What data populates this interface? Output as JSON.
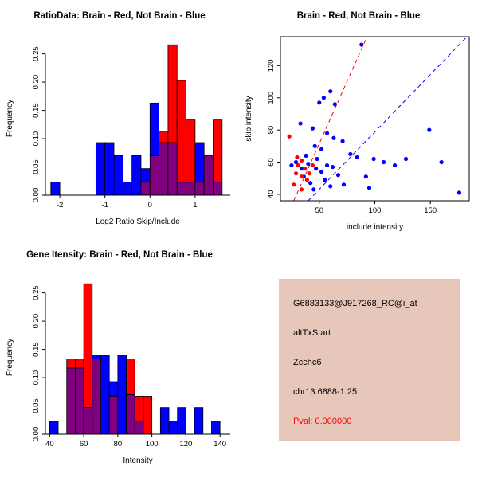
{
  "colors": {
    "red": "#FF0000",
    "blue": "#0000FF",
    "overlap": "#800080",
    "axis": "#000000",
    "background": "#FFFFFF"
  },
  "chart_data": [
    {
      "id": "ratio_histogram",
      "type": "bar",
      "variant": "overlaid_histogram",
      "title": "RatioData: Brain - Red, Not Brain - Blue",
      "xlabel": "Log2 Ratio Skip/Include",
      "ylabel": "Frequency",
      "xlim": [
        -2.32,
        1.78
      ],
      "ylim": [
        0,
        0.272
      ],
      "xticks": [
        -2,
        -1,
        0,
        1
      ],
      "yticks": [
        0,
        0.05,
        0.1,
        0.15,
        0.2,
        0.25
      ],
      "ytick_decimals": 2,
      "grid": false,
      "bins": {
        "start": -2.2,
        "width": 0.2
      },
      "overlap_color": "#800080",
      "series": [
        {
          "name": "Brain",
          "role": "red",
          "color": "#FF0000",
          "values": [
            0,
            0,
            0,
            0,
            0,
            0,
            0,
            0,
            0,
            0,
            0.023,
            0.07,
            0.113,
            0.266,
            0.203,
            0.133,
            0.023,
            0.07,
            0.133,
            0
          ]
        },
        {
          "name": "Not Brain",
          "role": "blue",
          "color": "#0000FF",
          "values": [
            0.023,
            0,
            0,
            0,
            0,
            0.093,
            0.093,
            0.07,
            0.023,
            0.07,
            0.047,
            0.163,
            0.093,
            0.093,
            0.023,
            0.023,
            0.093,
            0.07,
            0.023,
            0
          ]
        }
      ]
    },
    {
      "id": "intensity_scatter",
      "type": "scatter",
      "title": "Brain - Red, Not Brain - Blue",
      "xlabel": "include intensity",
      "ylabel": "skip intensity",
      "xlim": [
        15,
        185
      ],
      "ylim": [
        36,
        138
      ],
      "xticks": [
        50,
        100,
        150
      ],
      "yticks": [
        40,
        60,
        80,
        100,
        120
      ],
      "grid": false,
      "box": true,
      "series": [
        {
          "name": "Not Brain",
          "role": "blue",
          "color": "#0000FF",
          "points": [
            [
              88,
              133
            ],
            [
              60,
              104
            ],
            [
              54,
              100
            ],
            [
              50,
              97
            ],
            [
              64,
              96
            ],
            [
              33,
              84
            ],
            [
              44,
              81
            ],
            [
              57,
              78
            ],
            [
              63,
              75
            ],
            [
              71,
              73
            ],
            [
              46,
              70
            ],
            [
              52,
              68
            ],
            [
              78,
              65
            ],
            [
              84,
              63
            ],
            [
              99,
              62
            ],
            [
              108,
              60
            ],
            [
              57,
              58
            ],
            [
              62,
              57
            ],
            [
              47,
              56
            ],
            [
              52,
              54
            ],
            [
              67,
              52
            ],
            [
              92,
              51
            ],
            [
              118,
              58
            ],
            [
              128,
              62
            ],
            [
              149,
              80
            ],
            [
              160,
              60
            ],
            [
              176,
              41
            ],
            [
              95,
              44
            ],
            [
              72,
              46
            ],
            [
              42,
              47
            ],
            [
              36,
              51
            ],
            [
              29,
              60
            ],
            [
              25,
              58
            ],
            [
              48,
              62
            ],
            [
              40,
              59
            ],
            [
              34,
              56
            ],
            [
              55,
              49
            ],
            [
              60,
              45
            ],
            [
              45,
              43
            ],
            [
              38,
              64
            ]
          ]
        },
        {
          "name": "Brain",
          "role": "red",
          "color": "#FF0000",
          "points": [
            [
              23,
              76
            ],
            [
              30,
              63
            ],
            [
              34,
              61
            ],
            [
              31,
              58
            ],
            [
              37,
              56
            ],
            [
              29,
              53
            ],
            [
              34,
              51
            ],
            [
              39,
              49
            ],
            [
              27,
              46
            ],
            [
              34,
              43
            ],
            [
              44,
              58
            ],
            [
              41,
              53
            ]
          ]
        }
      ],
      "lines": [
        {
          "name": "brain-fit-line",
          "color": "#FF0000",
          "dashed": true,
          "from": [
            27,
            36
          ],
          "to": [
            93,
            138
          ]
        },
        {
          "name": "notbrain-fit-line",
          "color": "#0000FF",
          "dashed": true,
          "from": [
            40,
            36
          ],
          "to": [
            183,
            138
          ]
        }
      ]
    },
    {
      "id": "gene_intensity_histogram",
      "type": "bar",
      "variant": "overlaid_histogram",
      "title": "Gene Itensity: Brain - Red, Not Brain - Blue",
      "xlabel": "Intensity",
      "ylabel": "Frequency",
      "xlim": [
        37.5,
        146
      ],
      "ylim": [
        0,
        0.272
      ],
      "xticks": [
        40,
        60,
        80,
        100,
        120,
        140
      ],
      "yticks": [
        0,
        0.05,
        0.1,
        0.15,
        0.2,
        0.25
      ],
      "ytick_decimals": 2,
      "grid": false,
      "bins": {
        "start": 40,
        "width": 5
      },
      "overlap_color": "#800080",
      "series": [
        {
          "name": "Brain",
          "role": "red",
          "color": "#FF0000",
          "values": [
            0,
            0,
            0.133,
            0.133,
            0.266,
            0.133,
            0,
            0.067,
            0,
            0.133,
            0.067,
            0.067,
            0,
            0,
            0,
            0,
            0,
            0,
            0,
            0,
            0
          ]
        },
        {
          "name": "Not Brain",
          "role": "blue",
          "color": "#0000FF",
          "values": [
            0.023,
            0,
            0.117,
            0.117,
            0.047,
            0.14,
            0.14,
            0.093,
            0.14,
            0.07,
            0.023,
            0,
            0,
            0.047,
            0.023,
            0.047,
            0,
            0.047,
            0,
            0.023,
            0
          ]
        }
      ]
    }
  ],
  "info_box": {
    "bg": "#E8C7BB",
    "lines": [
      "G6883133@J917268_RC@i_at",
      "altTxStart",
      "Zcchc6",
      "chr13.6888-1.25"
    ],
    "pval": "Pval: 0.000000",
    "pval_color": "#FF0000"
  }
}
